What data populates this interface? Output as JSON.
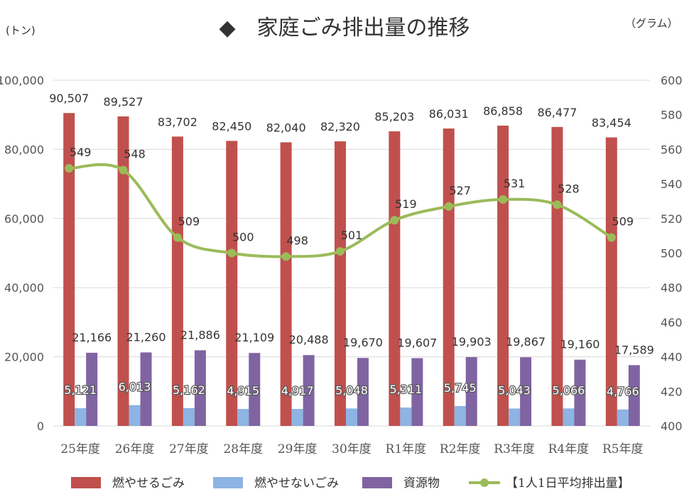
{
  "chart_data": {
    "type": "bar",
    "title": "◆　家庭ごみ排出量の推移",
    "y1_unit": "(トン)",
    "y2_unit": "（グラム）",
    "categories": [
      "25年度",
      "26年度",
      "27年度",
      "28年度",
      "29年度",
      "30年度",
      "R1年度",
      "R2年度",
      "R3年度",
      "R4年度",
      "R5年度"
    ],
    "y1_ticks": [
      "0",
      "20,000",
      "40,000",
      "60,000",
      "80,000",
      "100,000"
    ],
    "y2_ticks": [
      "400",
      "420",
      "440",
      "460",
      "480",
      "500",
      "520",
      "540",
      "560",
      "580",
      "600"
    ],
    "ylim_left": [
      0,
      100000
    ],
    "ylim_right": [
      400,
      600
    ],
    "grid": true,
    "legend_position": "bottom",
    "series": [
      {
        "name": "燃やせるごみ",
        "type": "bar",
        "axis": "left",
        "color": "#C0504D",
        "values": [
          90507,
          89527,
          83702,
          82450,
          82040,
          82320,
          85203,
          86031,
          86858,
          86477,
          83454
        ],
        "labels": [
          "90,507",
          "89,527",
          "83,702",
          "82,450",
          "82,040",
          "82,320",
          "85,203",
          "86,031",
          "86,858",
          "86,477",
          "83,454"
        ]
      },
      {
        "name": "燃やせないごみ",
        "type": "bar",
        "axis": "left",
        "color": "#8DB4E2",
        "values": [
          5121,
          6013,
          5162,
          4915,
          4917,
          5048,
          5311,
          5745,
          5043,
          5066,
          4766
        ],
        "labels": [
          "5,121",
          "6,013",
          "5,162",
          "4,915",
          "4,917",
          "5,048",
          "5,311",
          "5,745",
          "5,043",
          "5,066",
          "4,766"
        ]
      },
      {
        "name": "資源物",
        "type": "bar",
        "axis": "left",
        "color": "#8064A2",
        "values": [
          21166,
          21260,
          21886,
          21109,
          20488,
          19670,
          19607,
          19903,
          19867,
          19160,
          17589
        ],
        "labels": [
          "21,166",
          "21,260",
          "21,886",
          "21,109",
          "20,488",
          "19,670",
          "19,607",
          "19,903",
          "19,867",
          "19,160",
          "17,589"
        ]
      },
      {
        "name": "【1人1日平均排出量】",
        "type": "line",
        "axis": "right",
        "color": "#9BBB59",
        "values": [
          549,
          548,
          509,
          500,
          498,
          501,
          519,
          527,
          531,
          528,
          509
        ],
        "labels": [
          "549",
          "548",
          "509",
          "500",
          "498",
          "501",
          "519",
          "527",
          "531",
          "528",
          "509"
        ]
      }
    ]
  }
}
